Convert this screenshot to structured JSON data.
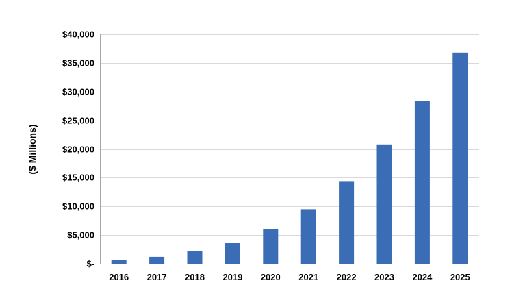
{
  "chart_data": {
    "type": "bar",
    "title": "",
    "xlabel": "",
    "ylabel": "($ Millions)",
    "categories": [
      "2016",
      "2017",
      "2018",
      "2019",
      "2020",
      "2021",
      "2022",
      "2023",
      "2024",
      "2025"
    ],
    "values": [
      600,
      1200,
      2200,
      3700,
      6000,
      9500,
      14400,
      20800,
      28400,
      36800
    ],
    "ylim": [
      0,
      40000
    ],
    "yticks": [
      0,
      5000,
      10000,
      15000,
      20000,
      25000,
      30000,
      35000,
      40000
    ],
    "ytick_labels": [
      "$-",
      "$5,000",
      "$10,000",
      "$15,000",
      "$20,000",
      "$25,000",
      "$30,000",
      "$35,000",
      "$40,000"
    ],
    "grid": true,
    "legend": "none",
    "bar_color": "#3a6db5",
    "grid_color": "#d9d9d9",
    "axis_color": "#a6a6a6"
  }
}
